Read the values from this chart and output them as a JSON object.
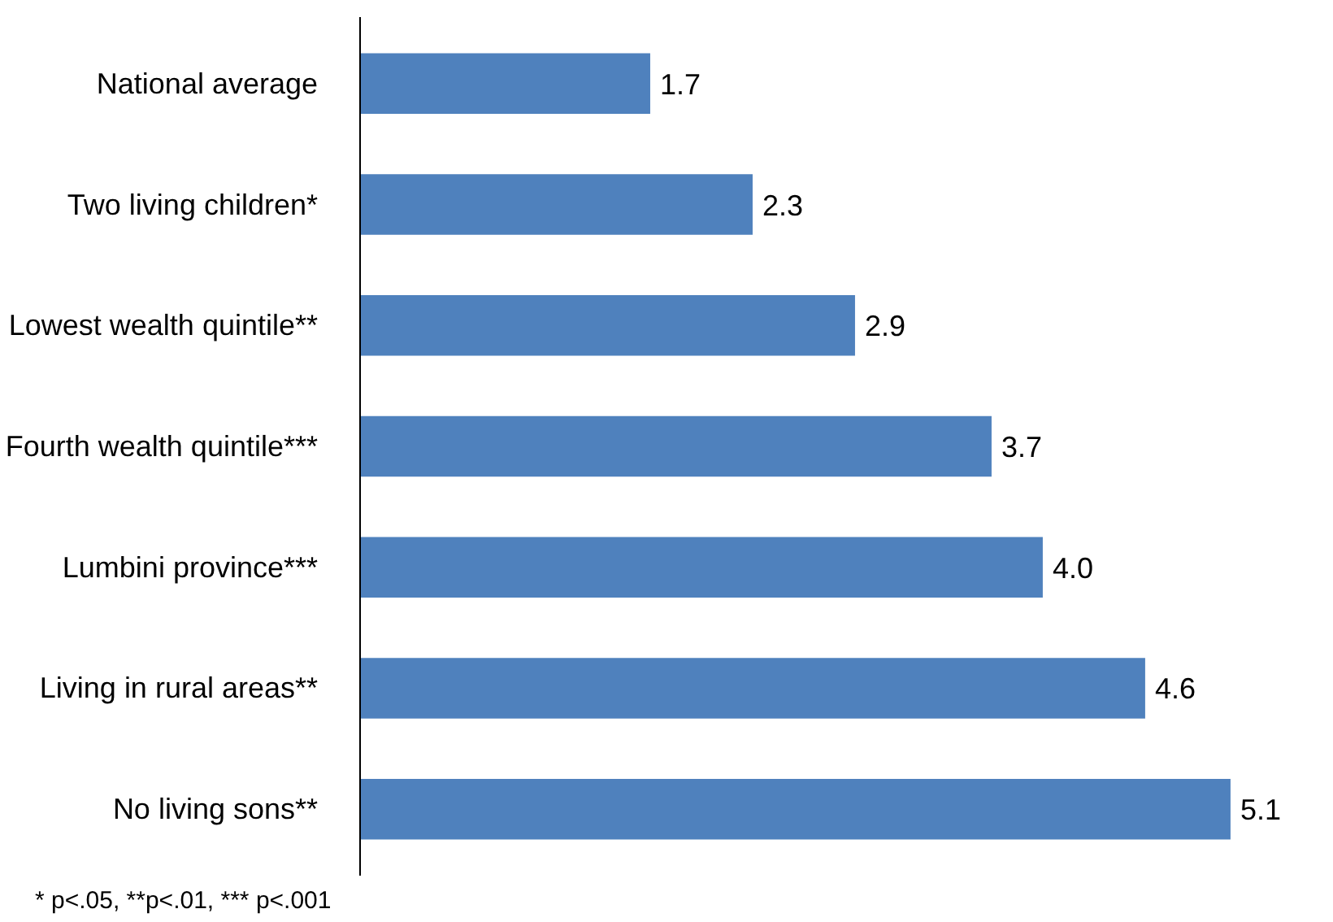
{
  "chart_data": {
    "type": "bar",
    "orientation": "horizontal",
    "categories": [
      "National average",
      "Two living children*",
      "Lowest wealth quintile**",
      "Fourth wealth quintile***",
      "Lumbini province***",
      "Living in rural areas**",
      "No living sons**"
    ],
    "values": [
      1.7,
      2.3,
      2.9,
      3.7,
      4.0,
      4.6,
      5.1
    ],
    "value_labels": [
      "1.7",
      "2.3",
      "2.9",
      "3.7",
      "4.0",
      "4.6",
      "5.1"
    ],
    "color": "#4f81bd",
    "grid": false,
    "annotations": [
      "* p<.05, **p<.01, *** p<.001"
    ]
  }
}
